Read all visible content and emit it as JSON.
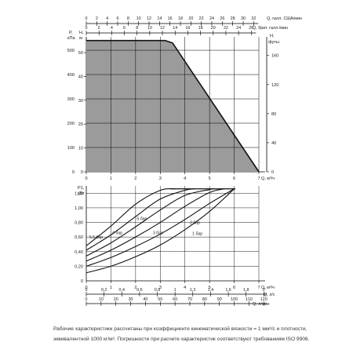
{
  "colors": {
    "accent_fill": "#9b9b9b",
    "line": "#111111",
    "grid": "#000000",
    "text": "#222222"
  },
  "top_axes": {
    "us_gpm": {
      "label": "Q, галл. США/мин",
      "ticks": [
        "0",
        "2",
        "4",
        "6",
        "8",
        "10",
        "12",
        "14",
        "16",
        "18",
        "20",
        "22",
        "24",
        "26",
        "28",
        "30",
        "32"
      ]
    },
    "imp_gpm": {
      "label": "Q, брит. галл./мин",
      "ticks": [
        "0",
        "2",
        "4",
        "6",
        "8",
        "10",
        "12",
        "14",
        "16",
        "18",
        "20",
        "22",
        "24",
        "26"
      ]
    }
  },
  "bottom_axes": {
    "ls": {
      "label": "Q, л/с",
      "ticks": [
        "0",
        "0,2",
        "0,4",
        "0,6",
        "0,8",
        "1",
        "1,2",
        "1,4",
        "1,6",
        "1,8",
        "2"
      ]
    },
    "lmin": {
      "label": "Q, л/мин",
      "ticks": [
        "0",
        "10",
        "20",
        "30",
        "40",
        "50",
        "60",
        "70",
        "80",
        "90",
        "100",
        "110",
        "120"
      ]
    }
  },
  "chart_data": [
    {
      "type": "area",
      "xlabel": "Q, м³/ч",
      "ylabel": "P, кПа",
      "ylabel_right": "H, футы",
      "ylabel_mid": "H, м",
      "x_ticks": [
        "0",
        "1",
        "2",
        "3",
        "4",
        "5",
        "6",
        "7"
      ],
      "y_ticks_left": [
        "0",
        "100",
        "200",
        "300",
        "400",
        "500"
      ],
      "y_ticks_mid": [
        "0",
        "10",
        "20",
        "30",
        "40",
        "50"
      ],
      "y_ticks_right": [
        "0",
        "40",
        "80",
        "120",
        "160"
      ],
      "xlim": [
        0,
        7
      ],
      "ylim": [
        0,
        555
      ],
      "series": [
        {
          "x": [
            0,
            3.2,
            3.5,
            7
          ],
          "y": [
            540,
            540,
            530,
            0
          ]
        }
      ]
    },
    {
      "type": "line",
      "xlabel": "Q, м³/ч",
      "ylabel": "P1, кВт",
      "x_ticks": [
        "0",
        "1",
        "2",
        "3",
        "4",
        "5",
        "6",
        "7"
      ],
      "y_ticks": [
        "0",
        "0,20",
        "0,40",
        "0,60",
        "0,80",
        "1,00",
        "1,20"
      ],
      "xlim": [
        0,
        7
      ],
      "ylim": [
        0,
        1.3
      ],
      "labels": [
        "5,5 бар",
        "5 бар",
        "4 бар",
        "3 бар",
        "2 бар",
        "1 бар"
      ],
      "series": [
        {
          "name": "5,5 бар",
          "x": [
            0,
            1.0,
            2.0,
            3.0,
            3.6
          ],
          "y": [
            0.48,
            0.75,
            1.05,
            1.24,
            1.26
          ]
        },
        {
          "name": "5 бар",
          "x": [
            0,
            1.0,
            2.0,
            3.0,
            4.0,
            4.4
          ],
          "y": [
            0.42,
            0.63,
            0.88,
            1.12,
            1.24,
            1.26
          ]
        },
        {
          "name": "4 бар",
          "x": [
            0,
            1.0,
            2.0,
            3.0,
            4.0,
            5.0,
            5.2
          ],
          "y": [
            0.34,
            0.52,
            0.74,
            0.97,
            1.17,
            1.25,
            1.26
          ]
        },
        {
          "name": "3 бар",
          "x": [
            0,
            1.0,
            2.0,
            3.0,
            4.0,
            5.0,
            5.6
          ],
          "y": [
            0.27,
            0.42,
            0.6,
            0.8,
            1.02,
            1.21,
            1.26
          ]
        },
        {
          "name": "2 бар",
          "x": [
            0,
            1.0,
            2.0,
            3.0,
            4.0,
            5.0,
            6.0
          ],
          "y": [
            0.2,
            0.32,
            0.47,
            0.64,
            0.84,
            1.06,
            1.26
          ]
        },
        {
          "name": "1 бар",
          "x": [
            0,
            1.0,
            2.0,
            3.0,
            4.0,
            5.0,
            6.0
          ],
          "y": [
            0.11,
            0.2,
            0.33,
            0.49,
            0.7,
            0.95,
            1.26
          ]
        }
      ]
    }
  ],
  "caption": {
    "line1": "Рабочие характеристики рассчитаны при коэффициенте кинематической вязкости = 1 мм²/с и плотности,",
    "line2": "эквивалентной 1000 кг/м³. Погрешности при расчете характеристик соответствуют требованиям ISO 9906."
  }
}
